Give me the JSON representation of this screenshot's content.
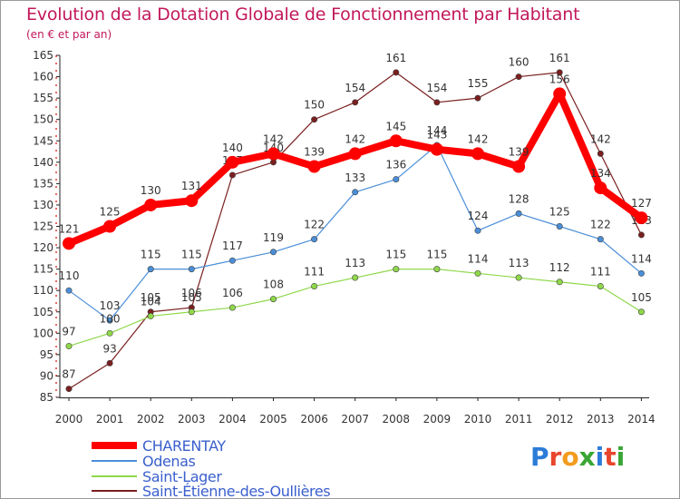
{
  "title": "Evolution de la Dotation Globale de Fonctionnement par Habitant",
  "subtitle": "(en € et par an)",
  "logo_text": "Proxiti",
  "chart_data": {
    "type": "line",
    "title": "Evolution de la Dotation Globale de Fonctionnement par Habitant",
    "subtitle": "(en € et par an)",
    "xlabel": "",
    "ylabel": "",
    "ylim": [
      85,
      165
    ],
    "yticks": [
      85,
      90,
      95,
      100,
      105,
      110,
      115,
      120,
      125,
      130,
      135,
      140,
      145,
      150,
      155,
      160,
      165
    ],
    "grid": false,
    "categories": [
      "2000",
      "2001",
      "2002",
      "2003",
      "2004",
      "2005",
      "2006",
      "2007",
      "2008",
      "2009",
      "2010",
      "2011",
      "2012",
      "2013",
      "2014"
    ],
    "series": [
      {
        "name": "CHARENTAY",
        "color": "#ff0000",
        "values": [
          121,
          125,
          130,
          131,
          140,
          142,
          139,
          142,
          145,
          143,
          142,
          139,
          156,
          134,
          127
        ]
      },
      {
        "name": "Odenas",
        "color": "#4a8ed8",
        "values": [
          110,
          103,
          115,
          115,
          117,
          119,
          122,
          133,
          136,
          144,
          124,
          128,
          125,
          122,
          114
        ]
      },
      {
        "name": "Saint-Lager",
        "color": "#8fd84a",
        "values": [
          97,
          100,
          104,
          105,
          106,
          108,
          111,
          113,
          115,
          115,
          114,
          113,
          112,
          111,
          105
        ]
      },
      {
        "name": "Saint-Étienne-des-Oullières",
        "color": "#7a1f1f",
        "values": [
          87,
          93,
          105,
          106,
          137,
          140,
          150,
          154,
          161,
          154,
          155,
          160,
          161,
          142,
          123
        ]
      }
    ],
    "legend_position": "bottom-left"
  }
}
